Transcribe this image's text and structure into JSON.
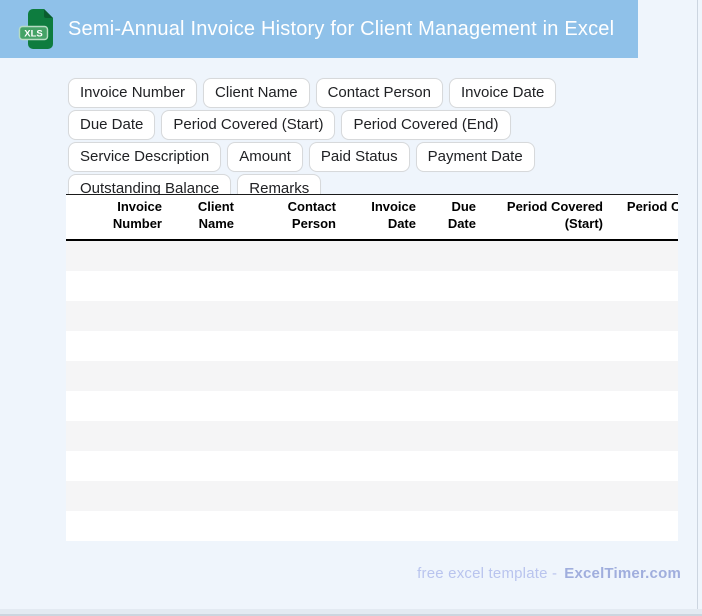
{
  "header": {
    "title": "Semi-Annual Invoice History for Client Management in Excel",
    "icon_label": "XLS"
  },
  "tags": [
    "Invoice Number",
    "Client Name",
    "Contact Person",
    "Invoice Date",
    "Due Date",
    "Period Covered (Start)",
    "Period Covered (End)",
    "Service Description",
    "Amount",
    "Paid Status",
    "Payment Date",
    "Outstanding Balance",
    "Remarks"
  ],
  "table": {
    "columns": [
      "",
      "Invoice Number",
      "Client Name",
      "Contact Person",
      "Invoice Date",
      "Due Date",
      "Period Covered (Start)",
      "Period Covered (End)"
    ],
    "empty_row_count": 10
  },
  "footer": {
    "prefix": "free excel template -",
    "brand": "ExcelTimer.com"
  },
  "colors": {
    "header_bg": "#8fc1e9",
    "page_bg": "#eff5fc",
    "icon_green": "#0e7c3f",
    "icon_badge_green": "#44a266",
    "stripe_gray": "#f5f5f6",
    "footer_text": "#b9c4ee",
    "footer_brand": "#a0aedd"
  }
}
